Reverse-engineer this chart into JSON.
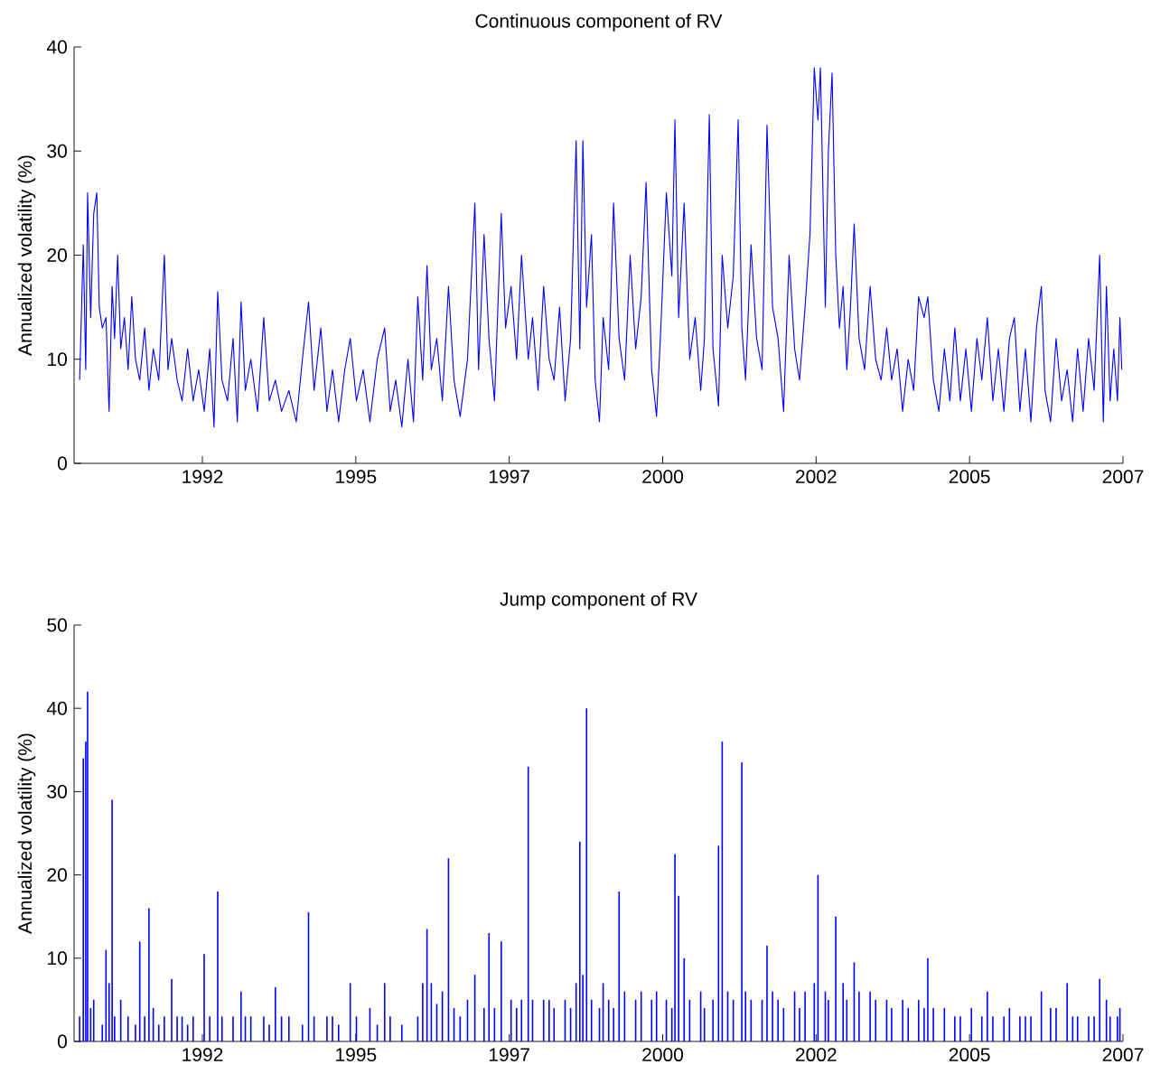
{
  "chart_data": [
    {
      "type": "line",
      "title": "Continuous component of RV",
      "ylabel": "Annualized volatility (%)",
      "xlim": [
        1990.41,
        2007.5
      ],
      "ylim": [
        0,
        40
      ],
      "xticks": [
        {
          "value": 1992.5,
          "label": "1992"
        },
        {
          "value": 1995,
          "label": "1995"
        },
        {
          "value": 1997.5,
          "label": "1997"
        },
        {
          "value": 2000,
          "label": "2000"
        },
        {
          "value": 2002.5,
          "label": "2002"
        },
        {
          "value": 2005,
          "label": "2005"
        },
        {
          "value": 2007.5,
          "label": "2007"
        }
      ],
      "yticks": [
        0,
        10,
        20,
        30,
        40
      ],
      "x": [
        1990.5,
        1990.56,
        1990.6,
        1990.63,
        1990.68,
        1990.73,
        1990.78,
        1990.82,
        1990.87,
        1990.93,
        1990.98,
        1991.03,
        1991.07,
        1991.12,
        1991.17,
        1991.23,
        1991.29,
        1991.35,
        1991.41,
        1991.48,
        1991.56,
        1991.63,
        1991.7,
        1991.79,
        1991.88,
        1991.94,
        1992.0,
        1992.09,
        1992.17,
        1992.26,
        1992.35,
        1992.44,
        1992.53,
        1992.62,
        1992.69,
        1992.75,
        1992.82,
        1992.91,
        1993.0,
        1993.07,
        1993.13,
        1993.2,
        1993.29,
        1993.4,
        1993.5,
        1993.59,
        1993.69,
        1993.79,
        1993.91,
        1994.03,
        1994.13,
        1994.23,
        1994.32,
        1994.43,
        1994.53,
        1994.62,
        1994.72,
        1994.82,
        1994.91,
        1995.01,
        1995.12,
        1995.23,
        1995.35,
        1995.47,
        1995.56,
        1995.65,
        1995.75,
        1995.85,
        1995.94,
        1996.01,
        1996.09,
        1996.16,
        1996.23,
        1996.32,
        1996.41,
        1996.51,
        1996.6,
        1996.7,
        1996.82,
        1996.94,
        1997.0,
        1997.09,
        1997.17,
        1997.26,
        1997.37,
        1997.44,
        1997.53,
        1997.62,
        1997.7,
        1997.81,
        1997.88,
        1997.97,
        1998.06,
        1998.15,
        1998.23,
        1998.32,
        1998.41,
        1998.5,
        1998.59,
        1998.65,
        1998.7,
        1998.76,
        1998.84,
        1998.9,
        1998.97,
        1999.03,
        1999.12,
        1999.2,
        1999.29,
        1999.38,
        1999.47,
        1999.56,
        1999.65,
        1999.73,
        1999.82,
        1999.9,
        1999.97,
        2000.06,
        2000.15,
        2000.2,
        2000.26,
        2000.35,
        2000.44,
        2000.53,
        2000.62,
        2000.68,
        2000.76,
        2000.82,
        2000.91,
        2000.97,
        2001.06,
        2001.15,
        2001.23,
        2001.29,
        2001.35,
        2001.44,
        2001.53,
        2001.62,
        2001.7,
        2001.79,
        2001.88,
        2001.97,
        2002.06,
        2002.15,
        2002.23,
        2002.32,
        2002.4,
        2002.47,
        2002.53,
        2002.57,
        2002.65,
        2002.7,
        2002.76,
        2002.82,
        2002.88,
        2002.94,
        2003.0,
        2003.06,
        2003.12,
        2003.2,
        2003.29,
        2003.38,
        2003.47,
        2003.56,
        2003.65,
        2003.73,
        2003.82,
        2003.91,
        2004.0,
        2004.09,
        2004.17,
        2004.26,
        2004.32,
        2004.41,
        2004.5,
        2004.59,
        2004.68,
        2004.76,
        2004.85,
        2004.94,
        2005.03,
        2005.12,
        2005.2,
        2005.29,
        2005.38,
        2005.47,
        2005.56,
        2005.65,
        2005.73,
        2005.82,
        2005.91,
        2006.0,
        2006.09,
        2006.17,
        2006.23,
        2006.32,
        2006.41,
        2006.5,
        2006.59,
        2006.68,
        2006.76,
        2006.85,
        2006.94,
        2007.03,
        2007.12,
        2007.18,
        2007.23,
        2007.29,
        2007.35,
        2007.41,
        2007.45,
        2007.48
      ],
      "series": [
        {
          "color": "#0000ff",
          "values": [
            8,
            21,
            9,
            26,
            14,
            24,
            26,
            15,
            13,
            14,
            5,
            17,
            12,
            20,
            11,
            14,
            9,
            16,
            10,
            8,
            13,
            7,
            11,
            8,
            20,
            9,
            12,
            8,
            6,
            11,
            6,
            9,
            5,
            11,
            3.5,
            16.5,
            8,
            6,
            12,
            4,
            15.5,
            7,
            10,
            5,
            14,
            6,
            8,
            5,
            7,
            4,
            10,
            15.5,
            7,
            13,
            5,
            9,
            4,
            9,
            12,
            6,
            9,
            4,
            10,
            13,
            5,
            8,
            3.5,
            10,
            4,
            16,
            8,
            19,
            9,
            12,
            6,
            17,
            8,
            4.5,
            10,
            25,
            9,
            22,
            12,
            6,
            24,
            13,
            17,
            10,
            20,
            10,
            14,
            7,
            17,
            10,
            8,
            15,
            6,
            12,
            31,
            11,
            31,
            15,
            22,
            8,
            4,
            14,
            9,
            25,
            12,
            8,
            20,
            11,
            16,
            27,
            9,
            4.5,
            13,
            26,
            18,
            33,
            14,
            25,
            10,
            14,
            7,
            12,
            33.5,
            11,
            5.5,
            20,
            13,
            18,
            33,
            13,
            8,
            21,
            12,
            9,
            32.5,
            15,
            12,
            5,
            20,
            11,
            8,
            15,
            22,
            38,
            33,
            38,
            15,
            30,
            37.5,
            20,
            13,
            17,
            9,
            15,
            23,
            12,
            9,
            17,
            10,
            8,
            13,
            8,
            11,
            5,
            10,
            7,
            16,
            14,
            16,
            8,
            5,
            11,
            6,
            13,
            6,
            11,
            5,
            12,
            8,
            14,
            6,
            11,
            5,
            12,
            14,
            5,
            11,
            4,
            13,
            17,
            7,
            4,
            12,
            6,
            9,
            4,
            11,
            5,
            12,
            7,
            20,
            4,
            17,
            6,
            11,
            6,
            14,
            9
          ]
        }
      ]
    },
    {
      "type": "bar",
      "title": "Jump component of RV",
      "ylabel": "Annualized volatility (%)",
      "xlim": [
        1990.41,
        2007.5
      ],
      "ylim": [
        0,
        50
      ],
      "xticks": [
        {
          "value": 1992.5,
          "label": "1992"
        },
        {
          "value": 1995,
          "label": "1995"
        },
        {
          "value": 1997.5,
          "label": "1997"
        },
        {
          "value": 2000,
          "label": "2000"
        },
        {
          "value": 2002.5,
          "label": "2002"
        },
        {
          "value": 2005,
          "label": "2005"
        },
        {
          "value": 2007.5,
          "label": "2007"
        }
      ],
      "yticks": [
        0,
        10,
        20,
        30,
        40,
        50
      ],
      "x": [
        1990.5,
        1990.56,
        1990.6,
        1990.63,
        1990.68,
        1990.73,
        1990.87,
        1990.93,
        1990.98,
        1991.03,
        1991.07,
        1991.17,
        1991.29,
        1991.41,
        1991.48,
        1991.56,
        1991.63,
        1991.7,
        1991.79,
        1991.88,
        1992.0,
        1992.09,
        1992.17,
        1992.26,
        1992.35,
        1992.53,
        1992.62,
        1992.75,
        1992.82,
        1993.0,
        1993.13,
        1993.2,
        1993.29,
        1993.5,
        1993.59,
        1993.69,
        1993.79,
        1993.91,
        1994.13,
        1994.23,
        1994.32,
        1994.53,
        1994.62,
        1994.72,
        1994.91,
        1995.01,
        1995.23,
        1995.35,
        1995.47,
        1995.56,
        1995.75,
        1996.01,
        1996.09,
        1996.16,
        1996.23,
        1996.32,
        1996.41,
        1996.51,
        1996.6,
        1996.7,
        1996.82,
        1996.94,
        1997.09,
        1997.17,
        1997.26,
        1997.37,
        1997.53,
        1997.62,
        1997.7,
        1997.81,
        1997.88,
        1998.06,
        1998.15,
        1998.23,
        1998.41,
        1998.5,
        1998.59,
        1998.65,
        1998.7,
        1998.76,
        1998.84,
        1998.97,
        1999.03,
        1999.12,
        1999.2,
        1999.29,
        1999.38,
        1999.56,
        1999.65,
        1999.82,
        1999.9,
        2000.06,
        2000.15,
        2000.2,
        2000.26,
        2000.35,
        2000.44,
        2000.62,
        2000.68,
        2000.82,
        2000.91,
        2000.97,
        2001.06,
        2001.15,
        2001.29,
        2001.35,
        2001.44,
        2001.62,
        2001.7,
        2001.79,
        2001.88,
        2001.97,
        2002.15,
        2002.23,
        2002.32,
        2002.47,
        2002.53,
        2002.65,
        2002.7,
        2002.82,
        2002.94,
        2003.0,
        2003.12,
        2003.2,
        2003.38,
        2003.47,
        2003.65,
        2003.73,
        2003.91,
        2004.0,
        2004.17,
        2004.26,
        2004.32,
        2004.41,
        2004.59,
        2004.76,
        2004.85,
        2005.03,
        2005.2,
        2005.29,
        2005.38,
        2005.56,
        2005.65,
        2005.82,
        2005.91,
        2006.0,
        2006.17,
        2006.32,
        2006.41,
        2006.59,
        2006.68,
        2006.76,
        2006.94,
        2007.03,
        2007.12,
        2007.23,
        2007.29,
        2007.41,
        2007.45
      ],
      "series": [
        {
          "color": "#0000ff",
          "values": [
            3,
            34,
            36,
            42,
            4,
            5,
            2,
            11,
            7,
            29,
            3,
            5,
            3,
            2,
            12,
            3,
            16,
            4,
            2,
            3,
            7.5,
            3,
            3,
            2,
            3,
            10.5,
            3,
            18,
            3,
            3,
            6,
            3,
            3,
            3,
            2,
            6.5,
            3,
            3,
            2,
            15.5,
            3,
            3,
            3,
            2,
            7,
            3,
            4,
            2,
            7,
            3,
            2,
            3,
            7,
            13.5,
            7,
            4.5,
            6,
            22,
            4,
            3,
            5,
            8,
            4,
            13,
            4,
            12,
            5,
            4,
            5,
            33,
            5,
            5,
            5,
            4,
            5,
            4,
            7,
            24,
            8,
            40,
            5,
            4,
            7,
            5,
            4,
            18,
            6,
            5,
            6,
            5,
            6,
            5,
            4,
            22.5,
            17.5,
            10,
            5,
            6,
            4,
            5,
            23.5,
            36,
            6,
            5,
            33.5,
            6,
            5,
            5,
            11.5,
            6,
            5,
            4,
            6,
            4,
            6,
            7,
            20,
            6,
            5,
            15,
            7,
            5,
            9.5,
            6,
            6,
            5,
            5,
            4,
            5,
            4,
            5,
            4,
            10,
            4,
            4,
            3,
            3,
            4,
            3,
            6,
            3,
            3,
            4,
            3,
            3,
            3,
            6,
            4,
            4,
            7,
            3,
            3,
            3,
            3,
            7.5,
            5,
            3,
            3,
            4
          ]
        }
      ]
    }
  ]
}
